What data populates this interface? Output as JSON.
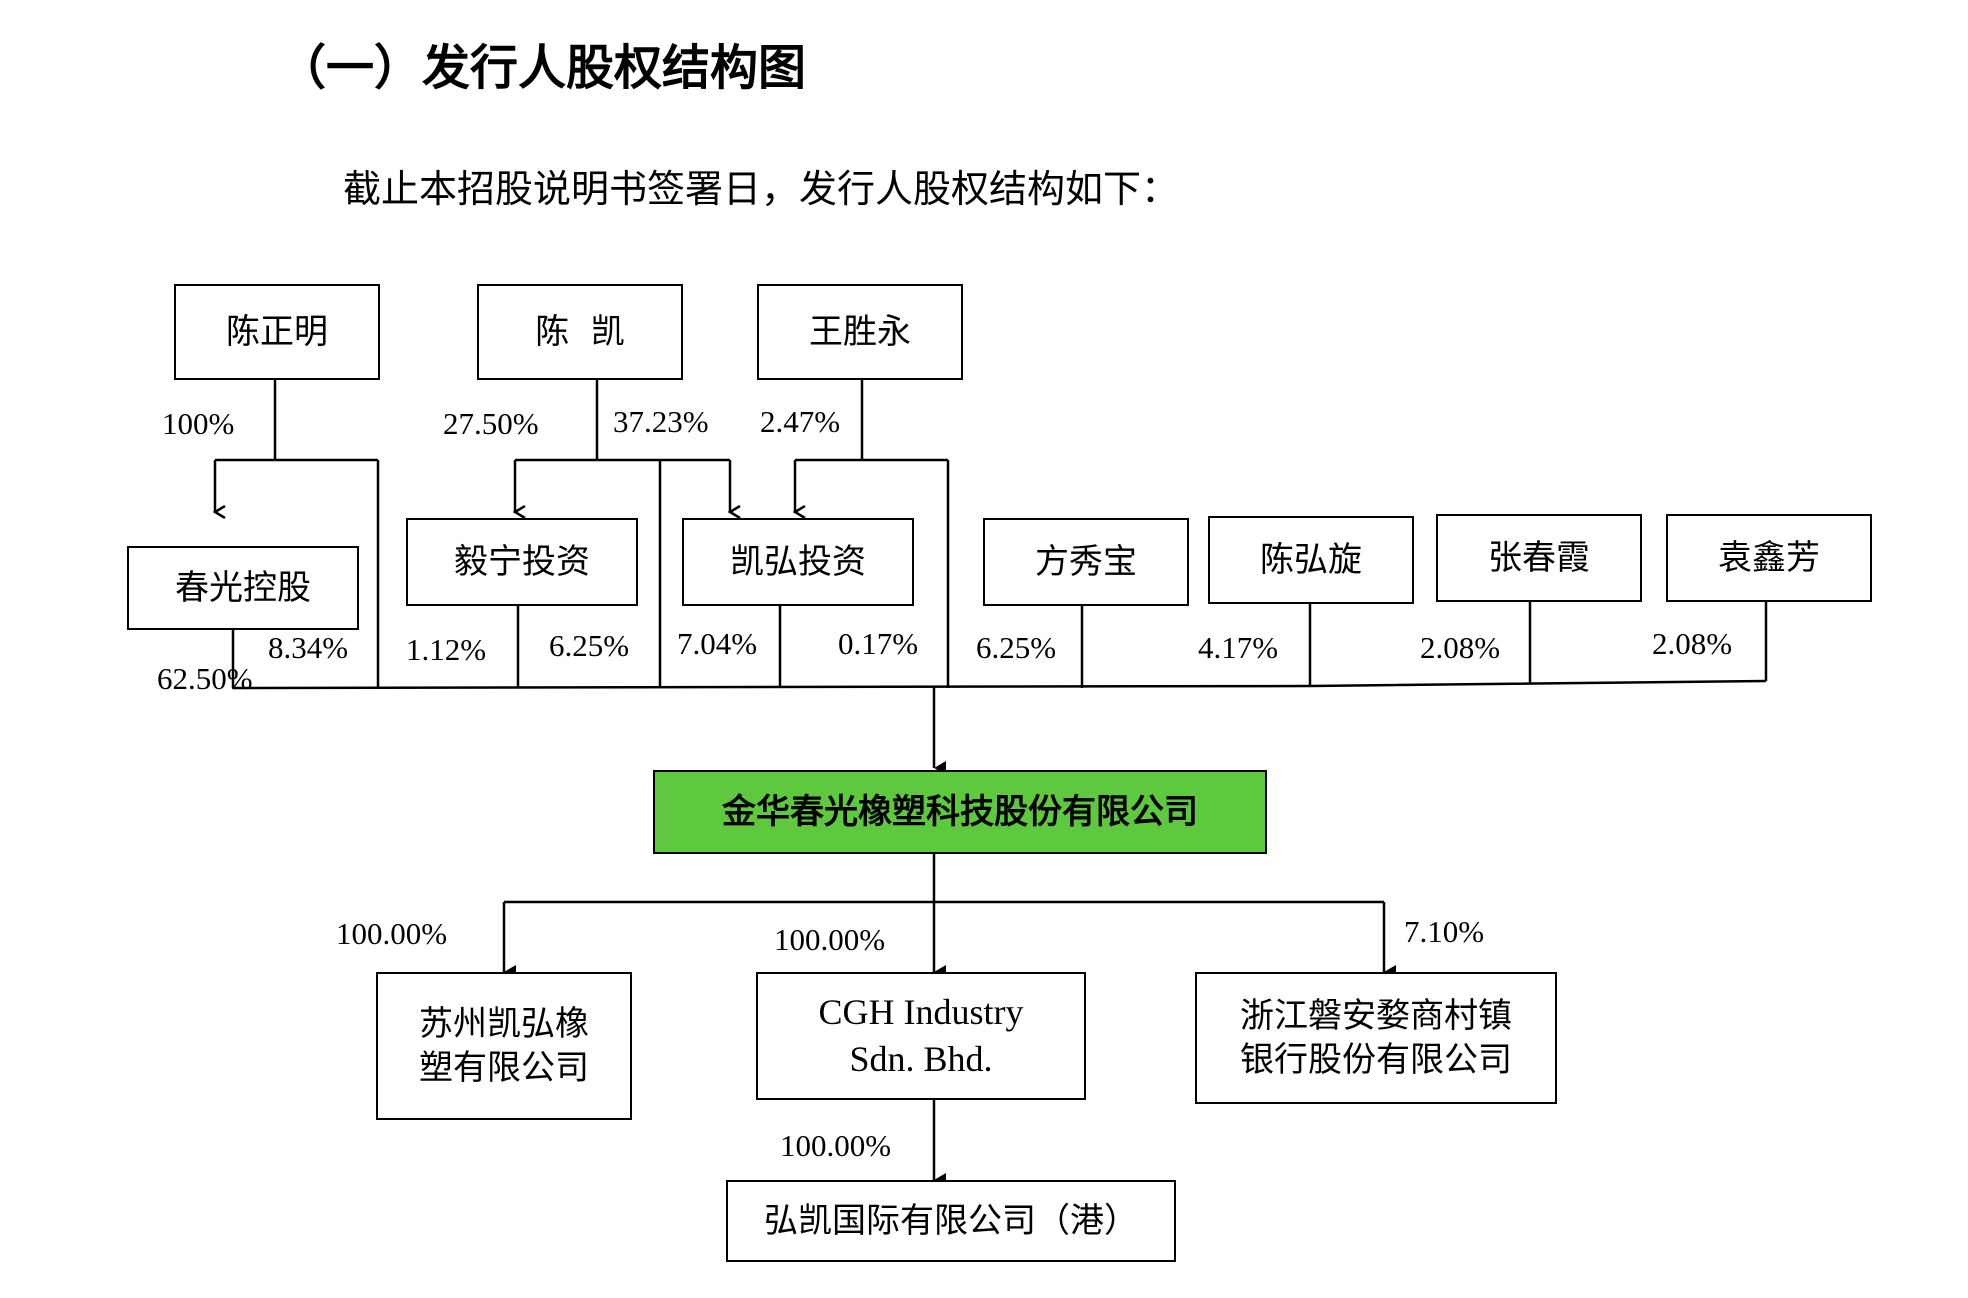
{
  "section_title": "（一）发行人股权结构图",
  "intro_text": "截止本招股说明书签署日，发行人股权结构如下：",
  "top_shareholders": {
    "chen_zhengming": "陈正明",
    "chen_kai": "陈  凯",
    "wang_shengyong": "王胜永"
  },
  "intermediate_holders": {
    "chunguang_holding": "春光控股",
    "yining_investment": "毅宁投资",
    "kaihong_investment": "凯弘投资"
  },
  "direct_individuals": {
    "fang_xiubao": "方秀宝",
    "chen_hongxuan": "陈弘旋",
    "zhang_chunxia": "张春霞",
    "yuan_xinfang": "袁鑫芳"
  },
  "issuer": "金华春光橡塑科技股份有限公司",
  "subsidiaries": {
    "suzhou_line1": "苏州凯弘橡",
    "suzhou_line2": "塑有限公司",
    "cgh_line1": "CGH Industry",
    "cgh_line2": "Sdn. Bhd.",
    "bank_line1": "浙江磐安婺商村镇",
    "bank_line2": "银行股份有限公司",
    "hongkai_hk": "弘凯国际有限公司（港）"
  },
  "percentages": {
    "chen_zhengming_to_chunguang": "100%",
    "chen_kai_to_yining": "27.50%",
    "chen_kai_to_kaihong": "37.23%",
    "wang_shengyong_to_kaihong": "2.47%",
    "chunguang_to_issuer": "62.50%",
    "chen_zhengming_to_issuer": "8.34%",
    "yining_to_issuer": "1.12%",
    "chen_kai_to_issuer": "6.25%",
    "kaihong_to_issuer": "7.04%",
    "wang_shengyong_to_issuer": "0.17%",
    "fang_xiubao_to_issuer": "6.25%",
    "chen_hongxuan_to_issuer": "4.17%",
    "zhang_chunxia_to_issuer": "2.08%",
    "yuan_xinfang_to_issuer": "2.08%",
    "issuer_to_suzhou": "100.00%",
    "issuer_to_cgh": "100.00%",
    "issuer_to_bank": "7.10%",
    "cgh_to_hongkai": "100.00%"
  },
  "colors": {
    "issuer_fill": "#5ec93f",
    "line": "#000000"
  }
}
